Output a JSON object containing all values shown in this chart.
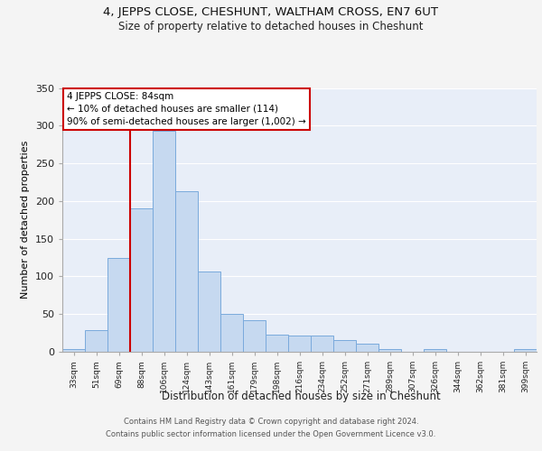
{
  "title": "4, JEPPS CLOSE, CHESHUNT, WALTHAM CROSS, EN7 6UT",
  "subtitle": "Size of property relative to detached houses in Cheshunt",
  "xlabel": "Distribution of detached houses by size in Cheshunt",
  "ylabel": "Number of detached properties",
  "categories": [
    "33sqm",
    "51sqm",
    "69sqm",
    "88sqm",
    "106sqm",
    "124sqm",
    "143sqm",
    "161sqm",
    "179sqm",
    "198sqm",
    "216sqm",
    "234sqm",
    "252sqm",
    "271sqm",
    "289sqm",
    "307sqm",
    "326sqm",
    "344sqm",
    "362sqm",
    "381sqm",
    "399sqm"
  ],
  "values": [
    4,
    29,
    125,
    190,
    293,
    213,
    106,
    50,
    42,
    23,
    22,
    21,
    15,
    11,
    3,
    0,
    3,
    0,
    0,
    0,
    4
  ],
  "bar_color": "#c6d9f0",
  "bar_edge_color": "#7aaadc",
  "red_line_x": 2.5,
  "annotation_text": "4 JEPPS CLOSE: 84sqm\n← 10% of detached houses are smaller (114)\n90% of semi-detached houses are larger (1,002) →",
  "annotation_box_color": "#ffffff",
  "annotation_box_edge": "#cc0000",
  "red_line_color": "#cc0000",
  "footer_line1": "Contains HM Land Registry data © Crown copyright and database right 2024.",
  "footer_line2": "Contains public sector information licensed under the Open Government Licence v3.0.",
  "bg_color": "#e8eef8",
  "grid_color": "#ffffff",
  "fig_bg_color": "#f4f4f4",
  "ylim": [
    0,
    350
  ],
  "yticks": [
    0,
    50,
    100,
    150,
    200,
    250,
    300,
    350
  ],
  "title_fontsize": 9.5,
  "subtitle_fontsize": 8.5,
  "ylabel_fontsize": 8,
  "xlabel_fontsize": 8.5,
  "annotation_fontsize": 7.5,
  "footer_fontsize": 6.0
}
